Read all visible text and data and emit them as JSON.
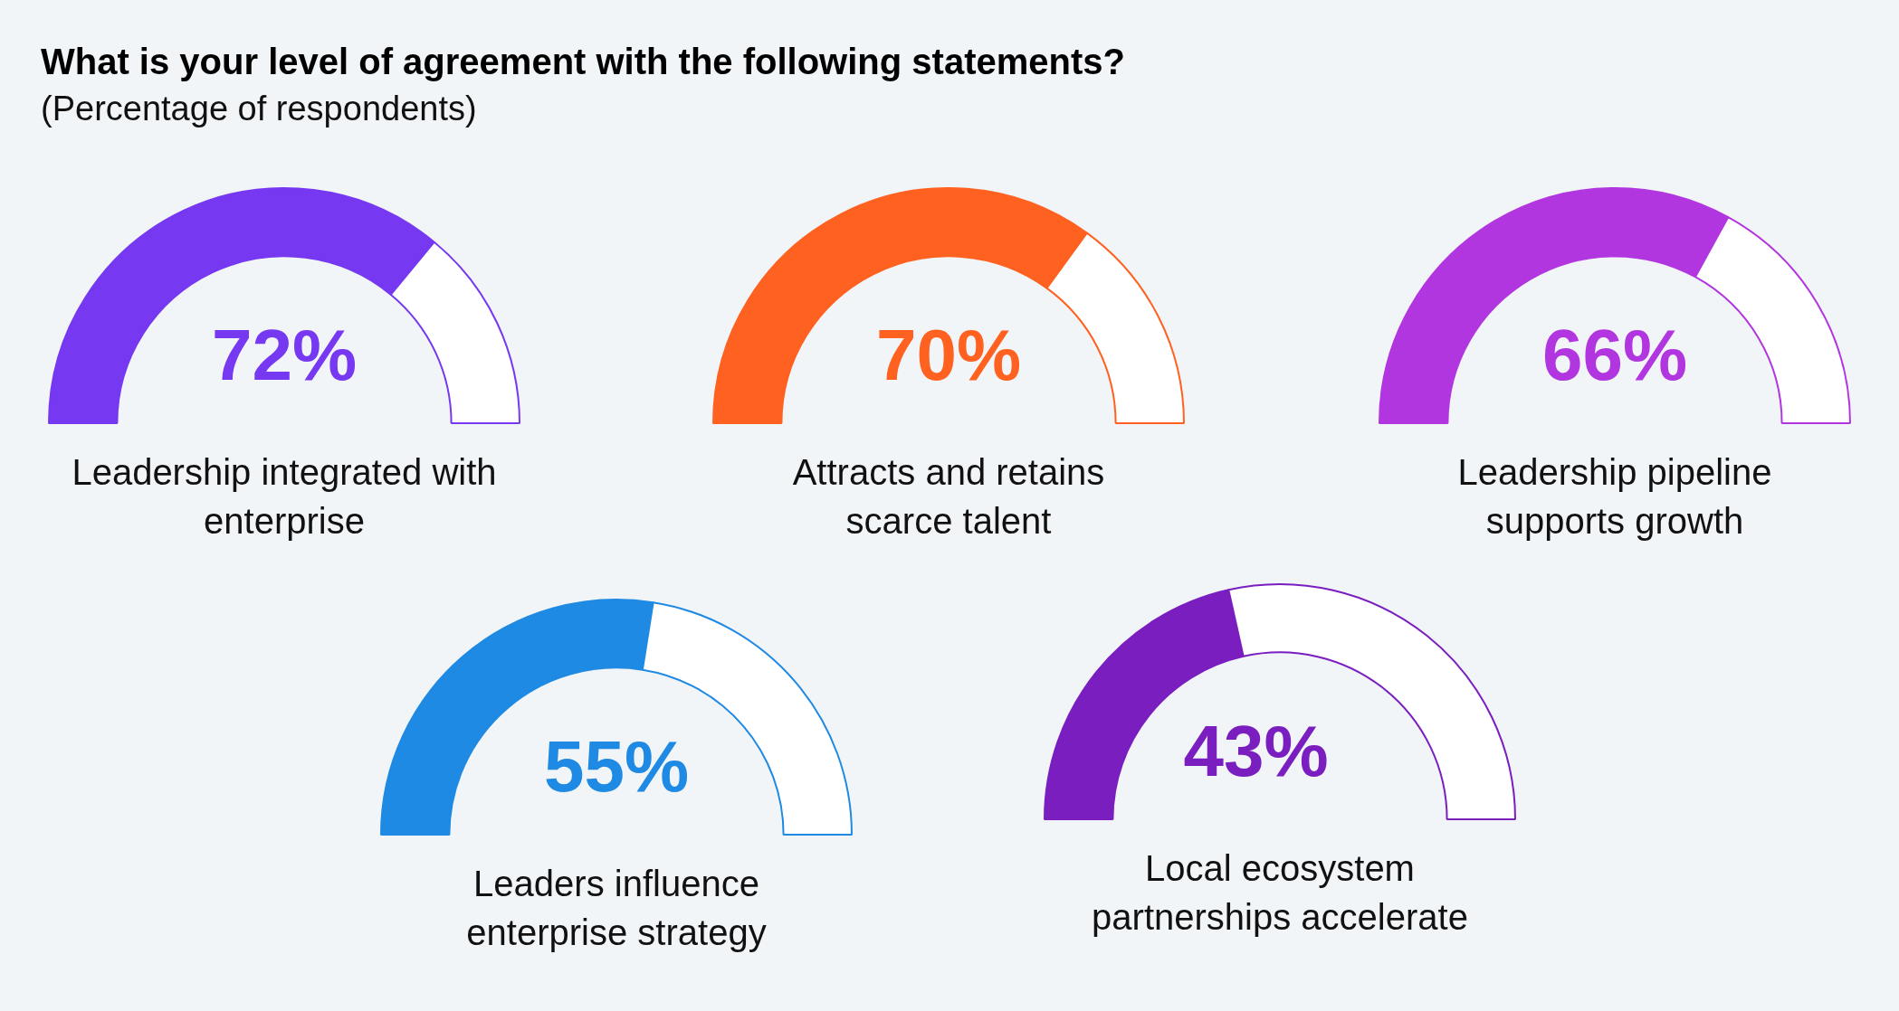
{
  "chart_data": [
    {
      "type": "other",
      "title": "What is your level of agreement with the following statements?",
      "subtitle": "(Percentage of respondents)"
    },
    {
      "type": "donut",
      "title": "Leadership integrated with enterprise",
      "categories": [
        null,
        null
      ],
      "values": [
        72,
        28
      ],
      "colors": [
        "#7638f0",
        "#ffffff"
      ],
      "value_labels": [
        "72%",
        null
      ]
    },
    {
      "type": "donut",
      "title": "Attracts and retains scarce talent",
      "categories": [
        null,
        null
      ],
      "values": [
        70,
        30
      ],
      "colors": [
        "#ff6120",
        "#ffffff"
      ],
      "value_labels": [
        "70%",
        null
      ]
    },
    {
      "type": "donut",
      "title": "Leadership pipeline supports growth",
      "categories": [
        null,
        null
      ],
      "values": [
        66,
        34
      ],
      "colors": [
        "#b236e0",
        "#ffffff"
      ],
      "value_labels": [
        "66%",
        null
      ]
    },
    {
      "type": "donut",
      "title": "Leaders influence enterprise strategy",
      "categories": [
        null,
        null
      ],
      "values": [
        55,
        45
      ],
      "colors": [
        "#1e8ae3",
        "#ffffff"
      ],
      "value_labels": [
        "55%",
        null
      ]
    },
    {
      "type": "donut",
      "title": "Local ecosystem partnerships accelerate",
      "categories": [
        null,
        null
      ],
      "values": [
        43,
        57
      ],
      "colors": [
        "#7a1ec0",
        "#ffffff"
      ],
      "value_labels": [
        "43%",
        null
      ]
    }
  ]
}
